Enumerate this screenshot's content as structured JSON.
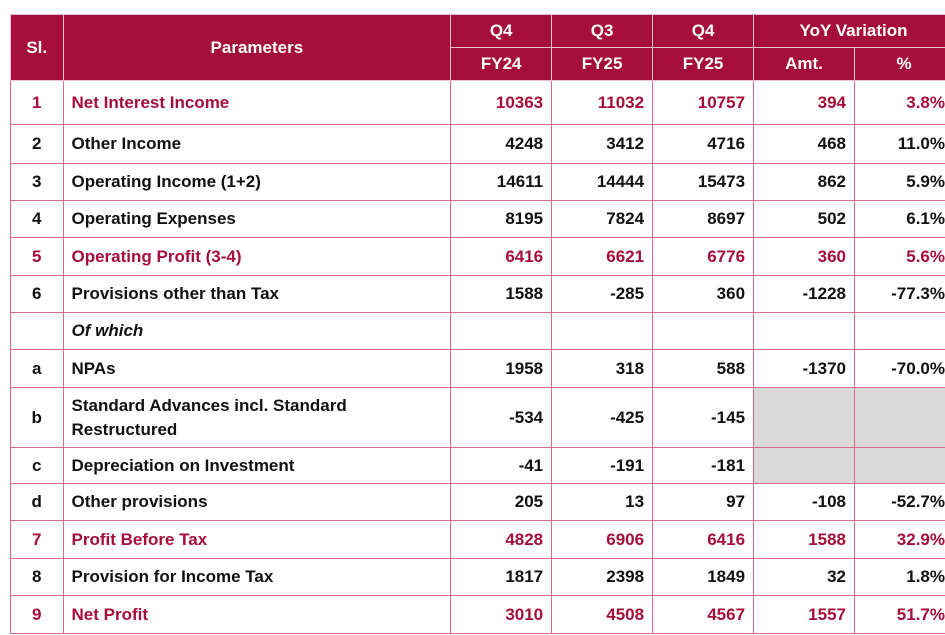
{
  "header": {
    "sl": "Sl.",
    "parameters": "Parameters",
    "col1_top": "Q4",
    "col1_bottom": "FY24",
    "col2_top": "Q3",
    "col2_bottom": "FY25",
    "col3_top": "Q4",
    "col3_bottom": "FY25",
    "yoy": "YoY Variation",
    "amt": "Amt.",
    "pct": "%"
  },
  "rows": [
    {
      "sl": "1",
      "param": "Net Interest Income",
      "v1": "10363",
      "v2": "11032",
      "v3": "10757",
      "amt": "394",
      "pct": "3.8%"
    },
    {
      "sl": "2",
      "param": "Other Income",
      "v1": "4248",
      "v2": "3412",
      "v3": "4716",
      "amt": "468",
      "pct": "11.0%"
    },
    {
      "sl": "3",
      "param": "Operating Income (1+2)",
      "v1": "14611",
      "v2": "14444",
      "v3": "15473",
      "amt": "862",
      "pct": "5.9%"
    },
    {
      "sl": "4",
      "param": "Operating Expenses",
      "v1": "8195",
      "v2": "7824",
      "v3": "8697",
      "amt": "502",
      "pct": "6.1%"
    },
    {
      "sl": "5",
      "param": "Operating Profit (3-4)",
      "v1": "6416",
      "v2": "6621",
      "v3": "6776",
      "amt": "360",
      "pct": "5.6%"
    },
    {
      "sl": "6",
      "param": "Provisions other than Tax",
      "v1": "1588",
      "v2": "-285",
      "v3": "360",
      "amt": "-1228",
      "pct": "-77.3%"
    },
    {
      "sl": "",
      "param": "Of which",
      "v1": "",
      "v2": "",
      "v3": "",
      "amt": "",
      "pct": ""
    },
    {
      "sl": "a",
      "param": "NPAs",
      "v1": "1958",
      "v2": "318",
      "v3": "588",
      "amt": "-1370",
      "pct": "-70.0%"
    },
    {
      "sl": "b",
      "param": "Standard Advances incl. Standard Restructured",
      "v1": "-534",
      "v2": "-425",
      "v3": "-145",
      "amt": "",
      "pct": ""
    },
    {
      "sl": "c",
      "param": "Depreciation on Investment",
      "v1": "-41",
      "v2": "-191",
      "v3": "-181",
      "amt": "",
      "pct": ""
    },
    {
      "sl": "d",
      "param": "Other provisions",
      "v1": "205",
      "v2": "13",
      "v3": "97",
      "amt": "-108",
      "pct": "-52.7%"
    },
    {
      "sl": "7",
      "param": "Profit Before Tax",
      "v1": "4828",
      "v2": "6906",
      "v3": "6416",
      "amt": "1588",
      "pct": "32.9%"
    },
    {
      "sl": "8",
      "param": "Provision for Income Tax",
      "v1": "1817",
      "v2": "2398",
      "v3": "1849",
      "amt": "32",
      "pct": "1.8%"
    },
    {
      "sl": "9",
      "param": "Net Profit",
      "v1": "3010",
      "v2": "4508",
      "v3": "4567",
      "amt": "1557",
      "pct": "51.7%"
    }
  ]
}
